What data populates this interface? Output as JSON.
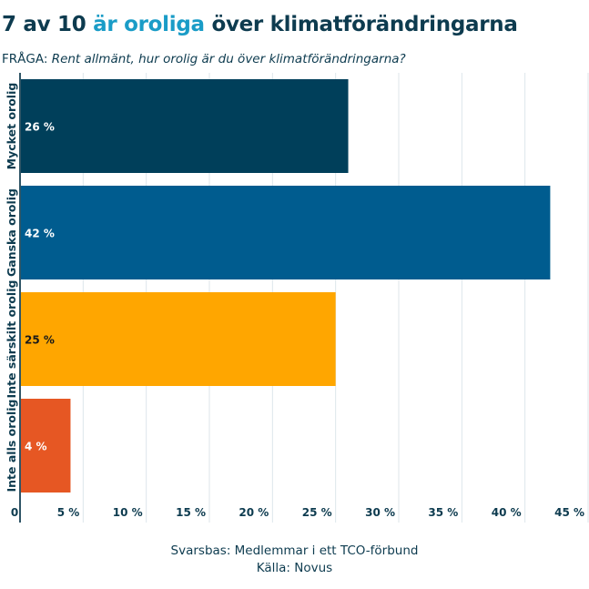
{
  "header": {
    "title_prefix": "7 av 10 ",
    "title_highlight": "är oroliga",
    "title_suffix": " över klimatförändringarna",
    "question_label": "FRÅGA:",
    "question_text": "Rent allmänt, hur orolig är du över klimatförändringarna?"
  },
  "footer": {
    "base": "Svarsbas: Medlemmar i ett TCO-förbund",
    "source": "Källa: Novus"
  },
  "colors": {
    "title": "#0d3b4f",
    "highlight": "#1a9cc7",
    "grid": "#dde6ea",
    "axis": "#2f5566"
  },
  "chart_data": {
    "type": "bar",
    "orientation": "horizontal",
    "title": "7 av 10 är oroliga över klimatförändringarna",
    "subtitle": "FRÅGA: Rent allmänt, hur orolig är du över klimatförändringarna?",
    "categories": [
      "Mycket orolig",
      "Ganska orolig",
      "Inte särskilt orolig",
      "Inte alls orolig"
    ],
    "values": [
      26,
      42,
      25,
      4
    ],
    "value_labels": [
      "26 %",
      "42 %",
      "25 %",
      "4 %"
    ],
    "bar_colors": [
      "#003f5a",
      "#005c8f",
      "#ffa600",
      "#e65723"
    ],
    "label_colors": [
      "#ffffff",
      "#ffffff",
      "#1a1a1a",
      "#ffffff"
    ],
    "xlabel": "",
    "ylabel": "",
    "xlim": [
      0,
      45
    ],
    "xticks": [
      0,
      5,
      10,
      15,
      20,
      25,
      30,
      35,
      40,
      45
    ],
    "xtick_labels": [
      "0",
      "5 %",
      "10 %",
      "15 %",
      "20 %",
      "25 %",
      "30 %",
      "35 %",
      "40 %",
      "45 %"
    ],
    "grid": true,
    "legend": "none"
  }
}
